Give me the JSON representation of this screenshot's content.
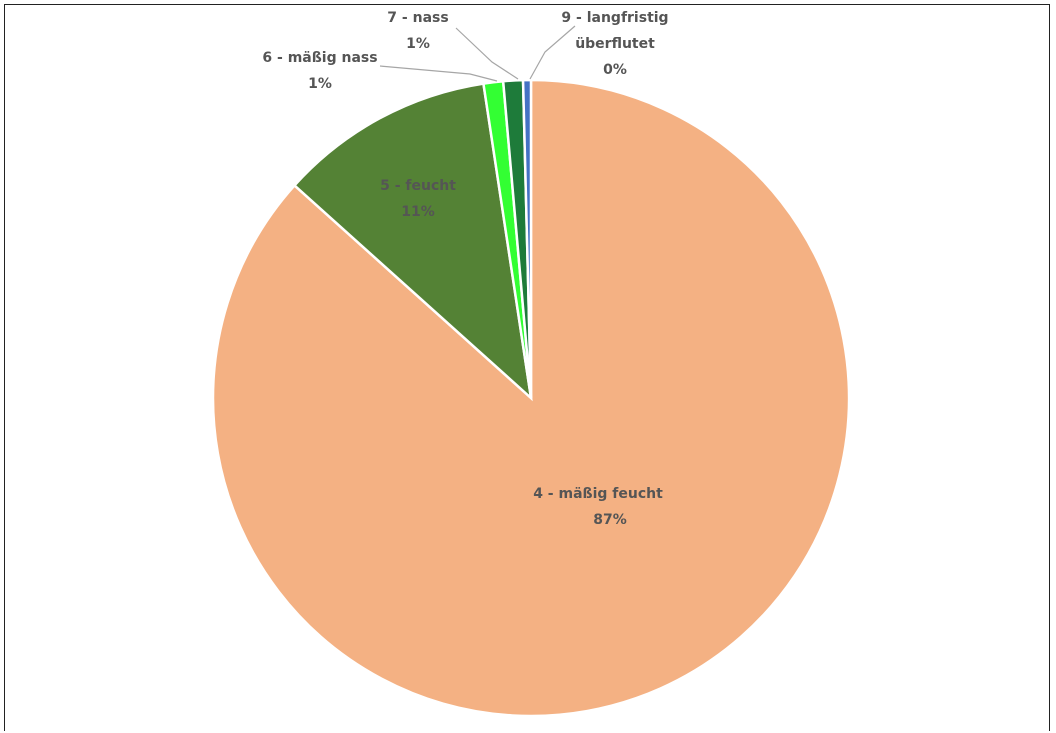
{
  "chart_data": {
    "type": "pie",
    "title": "",
    "start_angle_deg": 0,
    "direction": "clockwise",
    "legend": "none",
    "data_labels": "category-and-percent",
    "slices": [
      {
        "category": "4 - mäßig feucht",
        "value": 87,
        "percent_label": "87%",
        "color": "#f4b183"
      },
      {
        "category": "5 - feucht",
        "value": 11,
        "percent_label": "11%",
        "color": "#548235"
      },
      {
        "category": "6 - mäßig nass",
        "value": 1,
        "percent_label": "1%",
        "color": "#33ff33"
      },
      {
        "category": "7 - nass",
        "value": 1,
        "percent_label": "1%",
        "color": "#1e7b3a"
      },
      {
        "category": "9 - langfristig überflutet",
        "value": 0.4,
        "percent_label": "0%",
        "color": "#4472c4"
      }
    ]
  }
}
